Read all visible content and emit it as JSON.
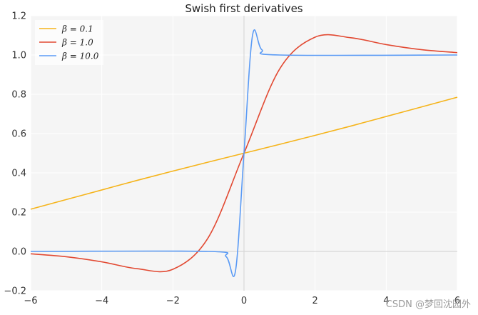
{
  "chart_data": {
    "type": "line",
    "title": "Swish first derivatives",
    "xlabel": "",
    "ylabel": "",
    "xlim": [
      -6,
      6
    ],
    "ylim": [
      -0.2,
      1.2
    ],
    "x_ticks": [
      -6,
      -4,
      -2,
      0,
      2,
      4,
      6
    ],
    "x_tick_labels": [
      "−6",
      "−4",
      "−2",
      "0",
      "2",
      "4",
      "6"
    ],
    "y_ticks": [
      -0.2,
      0.0,
      0.2,
      0.4,
      0.6,
      0.8,
      1.0,
      1.2
    ],
    "y_tick_labels": [
      "−0.2",
      "0.0",
      "0.2",
      "0.4",
      "0.6",
      "0.8",
      "1.0",
      "1.2"
    ],
    "grid": true,
    "legend_position": "top-left",
    "series": [
      {
        "name": "β = 0.1",
        "beta": 0.1,
        "color": "#f5b41b",
        "x": [
          -6,
          -5,
          -4,
          -3,
          -2,
          -1,
          0,
          1,
          2,
          3,
          4,
          5,
          6
        ],
        "y": [
          0.215,
          0.264,
          0.313,
          0.362,
          0.409,
          0.455,
          0.5,
          0.545,
          0.591,
          0.638,
          0.687,
          0.736,
          0.785
        ]
      },
      {
        "name": "β = 1.0",
        "beta": 1.0,
        "color": "#e24a33",
        "x": [
          -6,
          -5,
          -4,
          -3,
          -2,
          -1,
          0,
          1,
          2,
          3,
          4,
          5,
          6
        ],
        "y": [
          -0.012,
          -0.027,
          -0.053,
          -0.088,
          -0.091,
          0.072,
          0.5,
          0.928,
          1.091,
          1.088,
          1.053,
          1.027,
          1.012
        ]
      },
      {
        "name": "β = 10.0",
        "beta": 10.0,
        "color": "#5b9bf5",
        "x": [
          -6,
          -1,
          -0.5,
          -0.24,
          0,
          0.24,
          0.5,
          1,
          6
        ],
        "y": [
          0.0,
          0.0,
          -0.027,
          -0.1,
          0.5,
          1.1,
          1.027,
          1.0,
          1.0
        ]
      }
    ],
    "watermark": "CSDN @梦回沈园外"
  }
}
